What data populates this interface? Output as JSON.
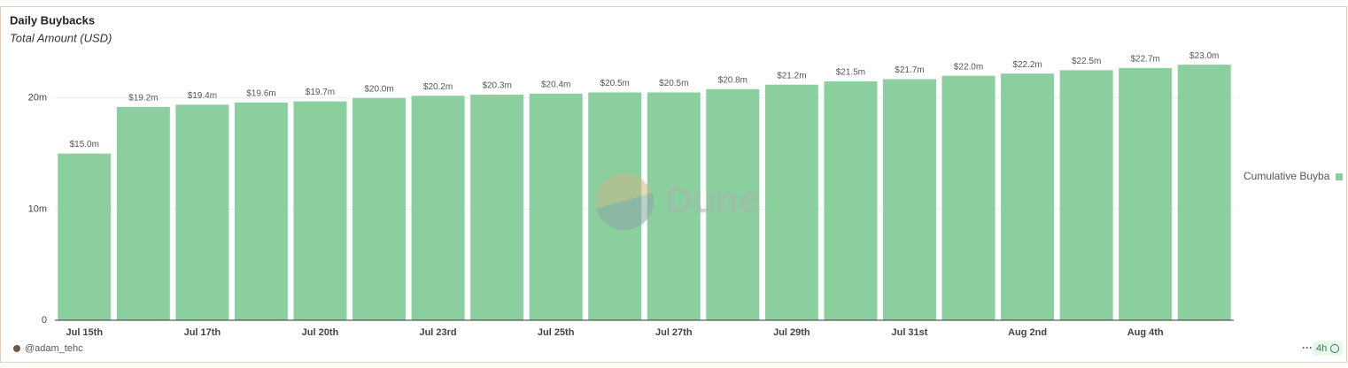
{
  "chart_data": {
    "type": "bar",
    "title": "Daily Buybacks",
    "subtitle": "Total Amount (USD)",
    "categories": [
      "Jul 15th",
      null,
      "Jul 17th",
      null,
      "Jul 20th",
      null,
      "Jul 23rd",
      null,
      "Jul 25th",
      null,
      "Jul 27th",
      null,
      "Jul 29th",
      null,
      "Jul 31st",
      null,
      "Aug 2nd",
      null,
      "Aug 4th",
      null
    ],
    "series": [
      {
        "name": "Cumulative Buyba",
        "color": "#8acf9d",
        "values": [
          15.0,
          19.2,
          19.4,
          19.6,
          19.7,
          20.0,
          20.2,
          20.3,
          20.4,
          20.5,
          20.5,
          20.8,
          21.2,
          21.5,
          21.7,
          22.0,
          22.2,
          22.5,
          22.7,
          23.0
        ],
        "value_labels": [
          "$15.0m",
          "$19.2m",
          "$19.4m",
          "$19.6m",
          "$19.7m",
          "$20.0m",
          "$20.2m",
          "$20.3m",
          "$20.4m",
          "$20.5m",
          "$20.5m",
          "$20.8m",
          "$21.2m",
          "$21.5m",
          "$21.7m",
          "$22.0m",
          "$22.2m",
          "$22.5m",
          "$22.7m",
          "$23.0m"
        ]
      }
    ],
    "ylim": [
      0,
      25
    ],
    "yticks": [
      0,
      {
        "value": 10,
        "label": "10m"
      },
      {
        "value": 20,
        "label": "20m"
      }
    ],
    "grid": true,
    "legend": "right",
    "watermark": "Dune",
    "author": "@adam_tehc",
    "refresh": "4h"
  }
}
